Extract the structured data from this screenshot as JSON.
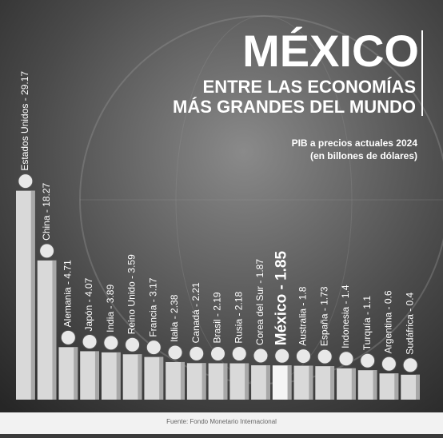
{
  "chart_data": {
    "type": "bar",
    "title": "MÉXICO",
    "subtitle_lines": [
      "ENTRE LAS ECONOMÍAS",
      "MÁS GRANDES DEL MUNDO"
    ],
    "note_lines": [
      "PIB a precios actuales 2024",
      "(en billones de dólares)"
    ],
    "source": "Fuente: Fondo Monetario Internacional",
    "categories": [
      "Estados Unidos - 29.17",
      "China - 18.27",
      "Alemania - 4.71",
      "Japón - 4.07",
      "India - 3.89",
      "Reino Unido - 3.59",
      "Francia - 3.17",
      "Italia - 2.38",
      "Canadá - 2.21",
      "Brasil - 2.19",
      "Rusia - 2.18",
      "Corea del Sur - 1.87",
      "México - 1.85",
      "Australia - 1.8",
      "España - 1.73",
      "Indonesia - 1.4",
      "Turquía - 1.1",
      "Argentina - 0.6",
      "Sudáfrica - 0.4"
    ],
    "values": [
      29.17,
      18.27,
      4.71,
      4.07,
      3.89,
      3.59,
      3.17,
      2.38,
      2.21,
      2.19,
      2.18,
      1.87,
      1.85,
      1.8,
      1.73,
      1.4,
      1.1,
      0.6,
      0.4
    ],
    "color": "#d9d9d9",
    "highlight": "México - 1.85"
  }
}
